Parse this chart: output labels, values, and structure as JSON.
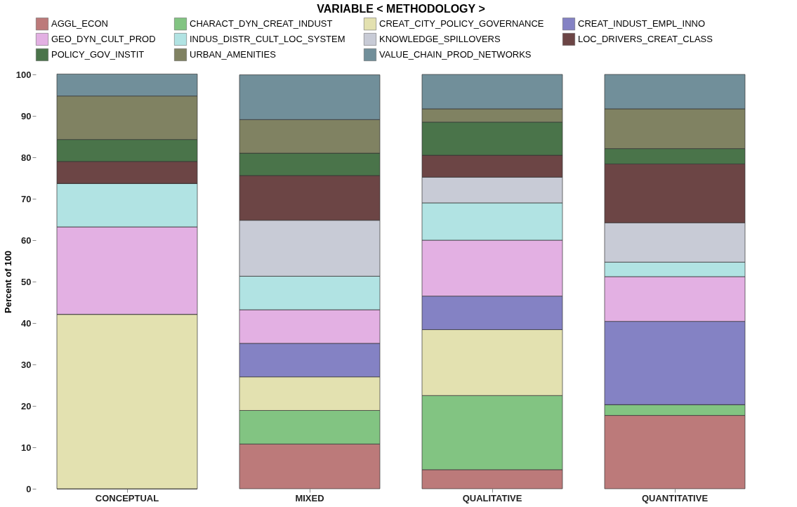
{
  "chart_data": {
    "type": "bar",
    "title": "VARIABLE < METHODOLOGY >",
    "ylabel": "Percent of 100",
    "stacked": true,
    "categories": [
      "CONCEPTUAL",
      "MIXED",
      "QUALITATIVE",
      "QUANTITATIVE"
    ],
    "ylim": [
      0,
      100
    ],
    "yticks": [
      0,
      10,
      20,
      30,
      40,
      50,
      60,
      70,
      80,
      90,
      100
    ],
    "grid": false,
    "legend": "top",
    "series": [
      {
        "name": "AGGL_ECON",
        "color": "#bc7a7a",
        "values": [
          0,
          10.8,
          4.6,
          17.7
        ]
      },
      {
        "name": "CHARACT_DYN_CREAT_INDUST",
        "color": "#82c482",
        "values": [
          0,
          8.1,
          17.9,
          2.6
        ]
      },
      {
        "name": "CREAT_CITY_POLICY_GOVERNANCE",
        "color": "#e3e1b0",
        "values": [
          42.1,
          8.1,
          15.9,
          0
        ]
      },
      {
        "name": "CREAT_INDUST_EMPL_INNO",
        "color": "#8482c4",
        "values": [
          0,
          8.1,
          8.1,
          20.1
        ]
      },
      {
        "name": "GEO_DYN_CULT_PROD",
        "color": "#e3b0e3",
        "values": [
          21.1,
          8.1,
          13.5,
          10.8
        ]
      },
      {
        "name": "INDUS_DISTR_CULT_LOC_SYSTEM",
        "color": "#b1e3e3",
        "values": [
          10.5,
          8.1,
          9.0,
          3.5
        ]
      },
      {
        "name": "KNOWLEDGE_SPILLOVERS",
        "color": "#c8cbd6",
        "values": [
          0,
          13.5,
          6.2,
          9.5
        ]
      },
      {
        "name": "LOC_DRIVERS_CREAT_CLASS",
        "color": "#6c4545",
        "values": [
          5.3,
          10.8,
          5.3,
          14.2
        ]
      },
      {
        "name": "POLICY_GOV_INSTIT",
        "color": "#4a744a",
        "values": [
          5.3,
          5.4,
          8.0,
          3.7
        ]
      },
      {
        "name": "URBAN_AMENITIES",
        "color": "#808262",
        "values": [
          10.5,
          8.1,
          3.2,
          9.6
        ]
      },
      {
        "name": "VALUE_CHAIN_PROD_NETWORKS",
        "color": "#718f9a",
        "values": [
          5.3,
          10.8,
          8.3,
          8.3
        ]
      }
    ]
  }
}
